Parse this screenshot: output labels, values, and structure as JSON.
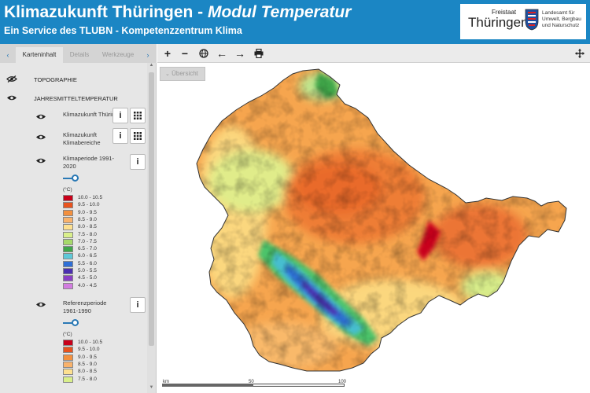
{
  "header": {
    "title_main": "Klimazukunft Thüringen - ",
    "title_em": "Modul Temperatur",
    "subtitle": "Ein Service des TLUBN - Kompetenzzentrum Klima",
    "logo": {
      "small": "Freistaat",
      "large": "Thüringen",
      "agency": "Landesamt für Umwelt, Bergbau und Naturschutz"
    }
  },
  "sidebar": {
    "tabs": [
      "Karteninhalt",
      "Details",
      "Werkzeuge"
    ],
    "groups": [
      "TOPOGRAPHIE",
      "JAHRESMITTELTEMPERATUR"
    ],
    "layers": {
      "klima_th": "Klimazukunft Thüringen",
      "klima_kb": "Klimazukunft Klimabereiche",
      "klimaperiode": "Klimaperiode 1991-2020",
      "referenz": "Referenzperiode 1961-1990"
    },
    "info_icon": "i",
    "unit": "(°C)",
    "legend": [
      {
        "label": "10.0 - 10.5",
        "color": "#c8001a"
      },
      {
        "label": "9.5 - 10.0",
        "color": "#e8531e"
      },
      {
        "label": "9.0 - 9.5",
        "color": "#f3903f"
      },
      {
        "label": "8.5 - 9.0",
        "color": "#f9b26b"
      },
      {
        "label": "8.0 - 8.5",
        "color": "#fde090"
      },
      {
        "label": "7.5 - 8.0",
        "color": "#d9ef8b"
      },
      {
        "label": "7.0 - 7.5",
        "color": "#a6d96a"
      },
      {
        "label": "6.5 - 7.0",
        "color": "#3fa64a"
      },
      {
        "label": "6.0 - 6.5",
        "color": "#5ec8d8"
      },
      {
        "label": "5.5 - 6.0",
        "color": "#2f6fd6"
      },
      {
        "label": "5.0 - 5.5",
        "color": "#4b2fb0"
      },
      {
        "label": "4.5 - 5.0",
        "color": "#8a3fc6"
      },
      {
        "label": "4.0 - 4.5",
        "color": "#d27de0"
      }
    ],
    "legend2": [
      {
        "label": "10.0 - 10.5",
        "color": "#c8001a"
      },
      {
        "label": "9.5 - 10.0",
        "color": "#e8531e"
      },
      {
        "label": "9.0 - 9.5",
        "color": "#f3903f"
      },
      {
        "label": "8.5 - 9.0",
        "color": "#f9b26b"
      },
      {
        "label": "8.0 - 8.5",
        "color": "#fde090"
      },
      {
        "label": "7.5 - 8.0",
        "color": "#d9ef8b"
      }
    ]
  },
  "toolbar": {
    "zoom_in": "+",
    "zoom_out": "−",
    "globe": "globe-icon",
    "back": "←",
    "forward": "→",
    "print": "print-icon",
    "move": "move-icon"
  },
  "map": {
    "overview_label": "Übersicht",
    "scale_labels": [
      "km",
      "50",
      "100"
    ]
  }
}
